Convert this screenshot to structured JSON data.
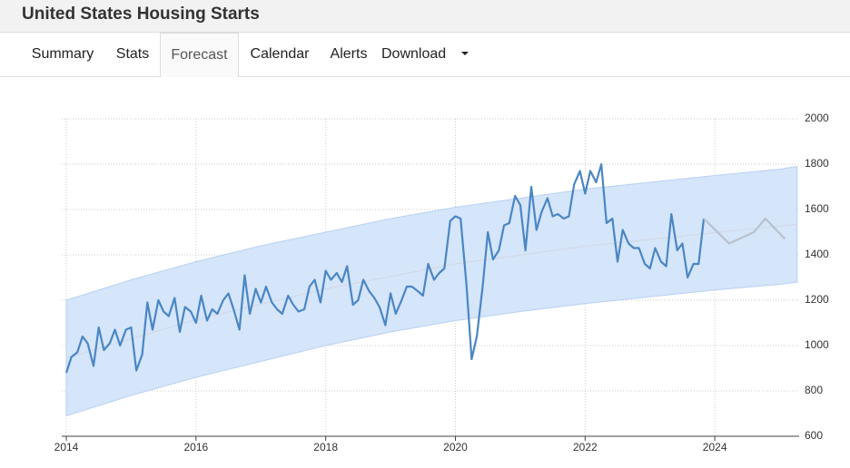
{
  "header": {
    "title": "United States Housing Starts"
  },
  "tabs": [
    "Summary",
    "Stats",
    "Forecast",
    "Calendar",
    "Alerts",
    "Download"
  ],
  "chart_data": {
    "type": "line",
    "xlim": [
      2013.93,
      2025.3
    ],
    "xticks": [
      2014,
      2016,
      2018,
      2020,
      2022,
      2024
    ],
    "ylim": [
      600,
      2000
    ],
    "yticks": [
      600,
      800,
      1000,
      1200,
      1400,
      1600,
      1800,
      2000
    ],
    "grid": true,
    "band": {
      "color": "#d5e5fa",
      "x": [
        2014,
        2015,
        2016,
        2017,
        2018,
        2019,
        2020,
        2021,
        2022,
        2023,
        2024,
        2025,
        2025.27
      ],
      "upper": [
        1200,
        1290,
        1370,
        1440,
        1500,
        1560,
        1610,
        1650,
        1690,
        1720,
        1750,
        1778,
        1790
      ],
      "lower": [
        690,
        780,
        860,
        930,
        1000,
        1060,
        1110,
        1150,
        1185,
        1215,
        1245,
        1270,
        1280
      ]
    },
    "series": [
      {
        "color": "#d0d8e2",
        "x": [
          2014,
          2016,
          2018,
          2020,
          2022,
          2024,
          2025.27
        ],
        "values": [
          945,
          1115,
          1250,
          1360,
          1438,
          1498,
          1535
        ]
      },
      {
        "color": "#4a86c4",
        "x": [
          2014,
          2014.08,
          2014.17,
          2014.25,
          2014.33,
          2014.42,
          2014.5,
          2014.58,
          2014.67,
          2014.75,
          2014.83,
          2014.92,
          2015,
          2015.08,
          2015.17,
          2015.25,
          2015.33,
          2015.42,
          2015.5,
          2015.58,
          2015.67,
          2015.75,
          2015.83,
          2015.92,
          2016,
          2016.08,
          2016.17,
          2016.25,
          2016.33,
          2016.42,
          2016.5,
          2016.58,
          2016.67,
          2016.75,
          2016.83,
          2016.92,
          2017,
          2017.08,
          2017.17,
          2017.25,
          2017.33,
          2017.42,
          2017.5,
          2017.58,
          2017.67,
          2017.75,
          2017.83,
          2017.92,
          2018,
          2018.08,
          2018.17,
          2018.25,
          2018.33,
          2018.42,
          2018.5,
          2018.58,
          2018.67,
          2018.75,
          2018.83,
          2018.92,
          2019,
          2019.08,
          2019.17,
          2019.25,
          2019.33,
          2019.42,
          2019.5,
          2019.58,
          2019.67,
          2019.75,
          2019.83,
          2019.92,
          2020,
          2020.08,
          2020.17,
          2020.25,
          2020.33,
          2020.42,
          2020.5,
          2020.58,
          2020.67,
          2020.75,
          2020.83,
          2020.92,
          2021,
          2021.08,
          2021.17,
          2021.25,
          2021.33,
          2021.42,
          2021.5,
          2021.58,
          2021.67,
          2021.75,
          2021.83,
          2021.92,
          2022,
          2022.08,
          2022.17,
          2022.25,
          2022.33,
          2022.42,
          2022.5,
          2022.58,
          2022.67,
          2022.75,
          2022.83,
          2022.92,
          2023,
          2023.08,
          2023.17,
          2023.25,
          2023.33,
          2023.42,
          2023.5,
          2023.58,
          2023.67,
          2023.75,
          2023.83
        ],
        "values": [
          880,
          950,
          970,
          1040,
          1010,
          910,
          1080,
          980,
          1010,
          1070,
          1000,
          1070,
          1080,
          890,
          960,
          1190,
          1070,
          1200,
          1150,
          1130,
          1210,
          1060,
          1170,
          1150,
          1100,
          1220,
          1110,
          1160,
          1140,
          1200,
          1230,
          1160,
          1070,
          1310,
          1140,
          1250,
          1190,
          1260,
          1190,
          1160,
          1140,
          1220,
          1180,
          1150,
          1160,
          1260,
          1290,
          1190,
          1330,
          1290,
          1320,
          1280,
          1350,
          1180,
          1200,
          1290,
          1240,
          1210,
          1170,
          1090,
          1230,
          1140,
          1200,
          1260,
          1260,
          1240,
          1220,
          1360,
          1290,
          1320,
          1340,
          1550,
          1570,
          1560,
          1270,
          940,
          1040,
          1260,
          1500,
          1380,
          1420,
          1530,
          1540,
          1660,
          1620,
          1420,
          1700,
          1510,
          1590,
          1650,
          1570,
          1580,
          1560,
          1570,
          1710,
          1770,
          1670,
          1770,
          1720,
          1800,
          1540,
          1560,
          1370,
          1510,
          1450,
          1430,
          1430,
          1360,
          1340,
          1430,
          1370,
          1350,
          1580,
          1420,
          1450,
          1300,
          1360,
          1360,
          1560
        ]
      },
      {
        "color": "#b9c2cc",
        "x": [
          2023.83,
          2024.22,
          2024.6,
          2024.78,
          2025.08
        ],
        "values": [
          1560,
          1450,
          1500,
          1560,
          1470
        ]
      }
    ]
  }
}
